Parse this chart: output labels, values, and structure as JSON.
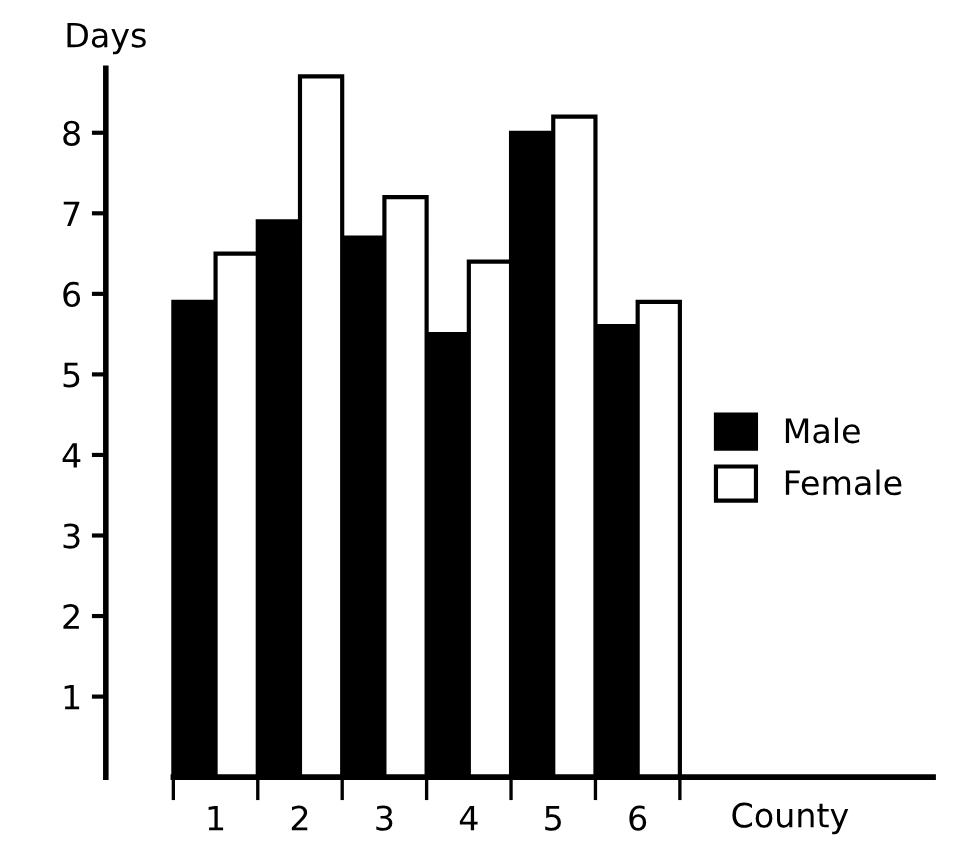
{
  "chart_data": {
    "type": "bar",
    "ylabel": "Days",
    "xlabel": "County",
    "categories": [
      "1",
      "2",
      "3",
      "4",
      "5",
      "6"
    ],
    "series": [
      {
        "name": "Male",
        "color": "#000000",
        "values": [
          5.9,
          6.9,
          6.7,
          5.5,
          8.0,
          5.6
        ]
      },
      {
        "name": "Female",
        "color": "#ffffff",
        "values": [
          6.5,
          8.7,
          7.2,
          6.4,
          8.2,
          5.9
        ]
      }
    ],
    "ylim": [
      0,
      8.8
    ],
    "yticks": [
      1,
      2,
      3,
      4,
      5,
      6,
      7,
      8
    ],
    "grid": false,
    "legend": "right"
  }
}
